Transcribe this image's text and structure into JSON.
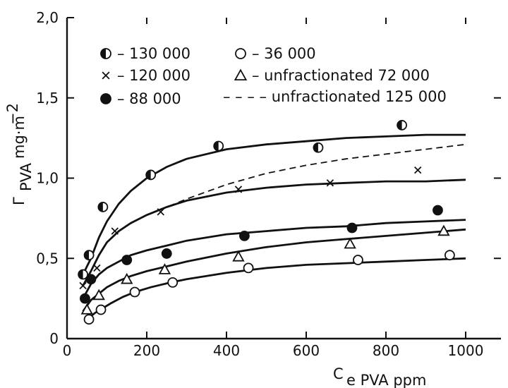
{
  "chart_data": {
    "type": "scatter",
    "xlabel_main": "C",
    "xlabel_sub": "e PVA ppm",
    "ylabel_main": "Γ",
    "ylabel_sub": "PVA",
    "ylabel_unit": "mg·m",
    "ylabel_exp": "−2",
    "xlim": [
      0,
      1000
    ],
    "ylim": [
      0,
      2.0
    ],
    "x_ticks": [
      "0",
      "200",
      "400",
      "600",
      "800",
      "1000"
    ],
    "y_ticks": [
      "0",
      "0,5",
      "1,0",
      "1,5",
      "2,0"
    ],
    "legend": [
      {
        "marker": "half-circle",
        "label": "– 130 000"
      },
      {
        "marker": "cross",
        "label": "– 120 000"
      },
      {
        "marker": "filled-circle",
        "label": "–  88 000"
      },
      {
        "marker": "open-circle",
        "label": "– 36 000"
      },
      {
        "marker": "triangle",
        "label": "– unfractionated   72 000"
      },
      {
        "marker": "dashed",
        "label": "– – – – unfractionated 125 000"
      }
    ],
    "series": [
      {
        "marker": "half-circle",
        "x": [
          40,
          55,
          90,
          210,
          380,
          630,
          840
        ],
        "y": [
          0.4,
          0.52,
          0.82,
          1.02,
          1.2,
          1.19,
          1.33
        ]
      },
      {
        "marker": "cross",
        "x": [
          40,
          75,
          120,
          235,
          430,
          660,
          880
        ],
        "y": [
          0.33,
          0.44,
          0.67,
          0.79,
          0.93,
          0.97,
          1.05
        ]
      },
      {
        "marker": "filled-circle",
        "x": [
          45,
          60,
          150,
          250,
          445,
          715,
          930
        ],
        "y": [
          0.25,
          0.37,
          0.49,
          0.53,
          0.64,
          0.69,
          0.8
        ]
      },
      {
        "marker": "open-circle",
        "x": [
          55,
          85,
          170,
          265,
          455,
          730,
          960
        ],
        "y": [
          0.12,
          0.18,
          0.29,
          0.35,
          0.44,
          0.49,
          0.52
        ]
      },
      {
        "marker": "triangle",
        "x": [
          50,
          80,
          150,
          245,
          430,
          710,
          945
        ],
        "y": [
          0.18,
          0.27,
          0.37,
          0.43,
          0.51,
          0.59,
          0.67
        ]
      }
    ],
    "curves": [
      {
        "style": "solid",
        "x": [
          40,
          60,
          80,
          100,
          130,
          160,
          200,
          250,
          300,
          400,
          500,
          600,
          700,
          800,
          900,
          1000
        ],
        "y": [
          0.4,
          0.5,
          0.63,
          0.73,
          0.84,
          0.92,
          1.0,
          1.07,
          1.12,
          1.18,
          1.21,
          1.23,
          1.25,
          1.26,
          1.27,
          1.27
        ]
      },
      {
        "style": "solid",
        "x": [
          40,
          60,
          80,
          100,
          130,
          160,
          200,
          250,
          300,
          400,
          500,
          600,
          700,
          800,
          900,
          1000
        ],
        "y": [
          0.33,
          0.42,
          0.52,
          0.6,
          0.67,
          0.72,
          0.77,
          0.82,
          0.86,
          0.91,
          0.94,
          0.96,
          0.97,
          0.98,
          0.98,
          0.99
        ]
      },
      {
        "style": "dashed",
        "x": [
          230,
          300,
          400,
          500,
          600,
          700,
          800,
          900,
          1000
        ],
        "y": [
          0.8,
          0.87,
          0.96,
          1.03,
          1.08,
          1.12,
          1.15,
          1.18,
          1.21
        ]
      },
      {
        "style": "solid",
        "x": [
          40,
          60,
          80,
          100,
          130,
          160,
          200,
          250,
          300,
          400,
          500,
          600,
          700,
          800,
          900,
          1000
        ],
        "y": [
          0.25,
          0.34,
          0.4,
          0.44,
          0.48,
          0.52,
          0.55,
          0.58,
          0.61,
          0.65,
          0.67,
          0.69,
          0.7,
          0.72,
          0.73,
          0.74
        ]
      },
      {
        "style": "solid",
        "x": [
          40,
          60,
          80,
          100,
          130,
          160,
          200,
          250,
          300,
          400,
          500,
          600,
          700,
          800,
          900,
          1000
        ],
        "y": [
          0.17,
          0.24,
          0.28,
          0.32,
          0.36,
          0.39,
          0.42,
          0.45,
          0.48,
          0.53,
          0.57,
          0.6,
          0.62,
          0.64,
          0.66,
          0.68
        ]
      },
      {
        "style": "solid",
        "x": [
          50,
          70,
          90,
          110,
          140,
          170,
          210,
          260,
          300,
          400,
          500,
          600,
          700,
          800,
          900,
          1000
        ],
        "y": [
          0.12,
          0.16,
          0.19,
          0.22,
          0.26,
          0.29,
          0.32,
          0.35,
          0.37,
          0.41,
          0.44,
          0.46,
          0.47,
          0.48,
          0.49,
          0.5
        ]
      }
    ]
  }
}
